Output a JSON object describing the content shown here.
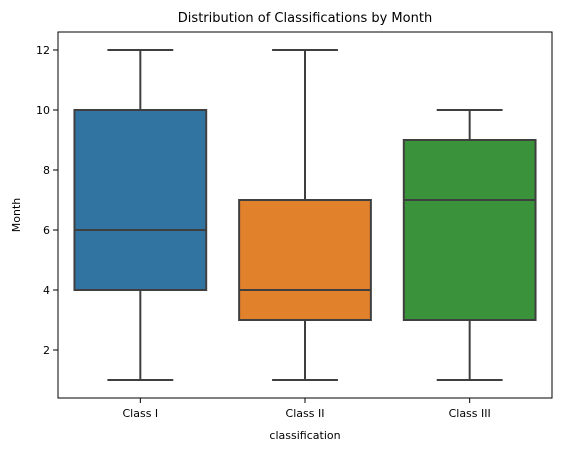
{
  "chart_data": {
    "type": "box",
    "title": "Distribution of Classifications by Month",
    "xlabel": "classification",
    "ylabel": "Month",
    "categories": [
      "Class I",
      "Class II",
      "Class III"
    ],
    "colors": [
      "#3274a1",
      "#e1812c",
      "#3a923a"
    ],
    "edge_color": "#3f3f3f",
    "ylim": [
      0.4,
      12.6
    ],
    "yticks": [
      2,
      4,
      6,
      8,
      10,
      12
    ],
    "grid": false,
    "legend": "none",
    "boxes": [
      {
        "category": "Class I",
        "whisker_low": 1,
        "q1": 4,
        "median": 6,
        "q3": 10,
        "whisker_high": 12
      },
      {
        "category": "Class II",
        "whisker_low": 1,
        "q1": 3,
        "median": 4,
        "q3": 7,
        "whisker_high": 12
      },
      {
        "category": "Class III",
        "whisker_low": 1,
        "q1": 3,
        "median": 7,
        "q3": 9,
        "whisker_high": 10
      }
    ]
  }
}
